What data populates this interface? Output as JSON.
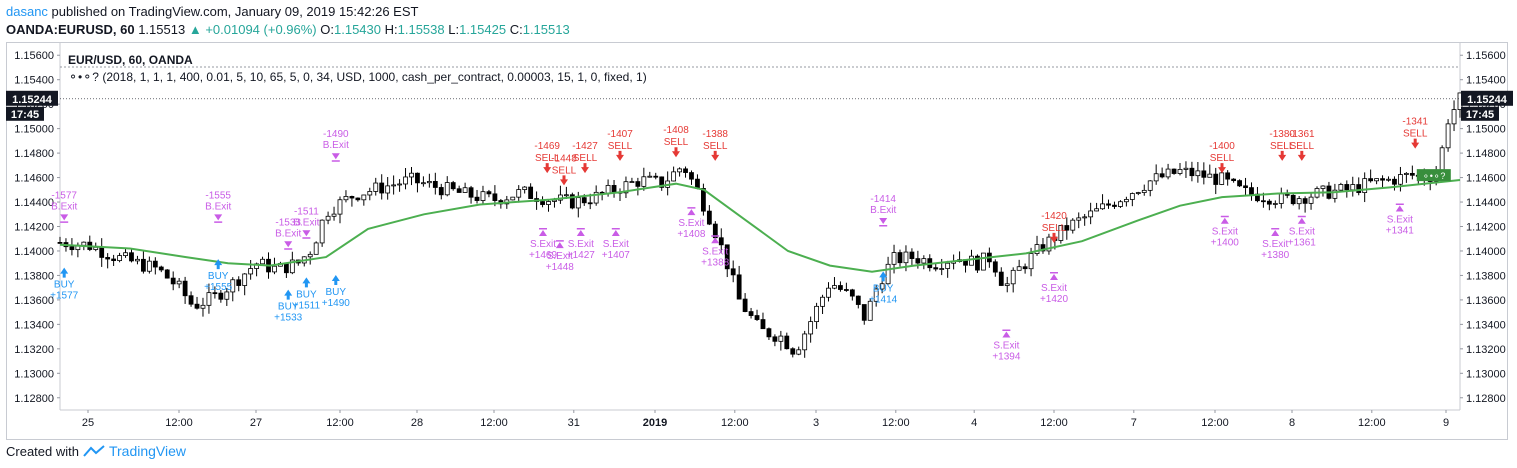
{
  "header": {
    "user": "dasanc",
    "published": "published on TradingView.com, January 09, 2019 15:42:26 EST",
    "symbol": "OANDA:EURUSD, 60",
    "last": "1.15513",
    "change": "+0.01094 (+0.96%)",
    "o_label": "O:",
    "o": "1.15430",
    "h_label": "H:",
    "h": "1.15538",
    "l_label": "L:",
    "l": "1.15425",
    "c_label": "C:",
    "c": "1.15513"
  },
  "legend": {
    "title": "EUR/USD, 60, OANDA",
    "strategy": "(2018, 1, 1, 1, 400, 0.01, 5, 10, 65, 5, 0, 34, USD, 1000, cash_per_contract, 0.00003, 15, 1, 0, fixed, 1)"
  },
  "price_tag": {
    "price": "1.15244",
    "time": "17:45"
  },
  "footer": {
    "created_with": "Created with",
    "brand": "TradingView"
  },
  "colors": {
    "sell": "#e53935",
    "buy": "#2196f3",
    "exit": "#c95ce6",
    "ema": "#4caf50",
    "up_candle": "#ffffff",
    "down_candle": "#000000"
  },
  "chart_data": {
    "type": "candlestick",
    "ylim": [
      1.127,
      1.157
    ],
    "y_ticks": [
      "1.15600",
      "1.15400",
      "1.15200",
      "1.15000",
      "1.14800",
      "1.14600",
      "1.14400",
      "1.14200",
      "1.14000",
      "1.13800",
      "1.13600",
      "1.13400",
      "1.13200",
      "1.13000",
      "1.12800"
    ],
    "x_ticks": [
      {
        "label": "25",
        "t": 0.02
      },
      {
        "label": "12:00",
        "t": 0.085
      },
      {
        "label": "27",
        "t": 0.14
      },
      {
        "label": "12:00",
        "t": 0.2
      },
      {
        "label": "28",
        "t": 0.255
      },
      {
        "label": "12:00",
        "t": 0.31
      },
      {
        "label": "31",
        "t": 0.367
      },
      {
        "label": "2019",
        "t": 0.425
      },
      {
        "label": "12:00",
        "t": 0.482
      },
      {
        "label": "3",
        "t": 0.54
      },
      {
        "label": "12:00",
        "t": 0.597
      },
      {
        "label": "4",
        "t": 0.653
      },
      {
        "label": "12:00",
        "t": 0.71
      },
      {
        "label": "7",
        "t": 0.767
      },
      {
        "label": "12:00",
        "t": 0.825
      },
      {
        "label": "8",
        "t": 0.88
      },
      {
        "label": "12:00",
        "t": 0.937
      },
      {
        "label": "9",
        "t": 0.99
      }
    ],
    "close_path": [
      [
        0.0,
        1.1407
      ],
      [
        0.02,
        1.1405
      ],
      [
        0.04,
        1.1395
      ],
      [
        0.055,
        1.139
      ],
      [
        0.07,
        1.1385
      ],
      [
        0.085,
        1.137
      ],
      [
        0.095,
        1.1355
      ],
      [
        0.11,
        1.1362
      ],
      [
        0.125,
        1.1375
      ],
      [
        0.14,
        1.139
      ],
      [
        0.155,
        1.1385
      ],
      [
        0.17,
        1.139
      ],
      [
        0.18,
        1.1402
      ],
      [
        0.19,
        1.1432
      ],
      [
        0.21,
        1.1446
      ],
      [
        0.23,
        1.1452
      ],
      [
        0.25,
        1.1458
      ],
      [
        0.27,
        1.1452
      ],
      [
        0.29,
        1.1446
      ],
      [
        0.31,
        1.1442
      ],
      [
        0.33,
        1.1448
      ],
      [
        0.35,
        1.1442
      ],
      [
        0.367,
        1.144
      ],
      [
        0.385,
        1.1445
      ],
      [
        0.4,
        1.1452
      ],
      [
        0.415,
        1.1458
      ],
      [
        0.43,
        1.1455
      ],
      [
        0.445,
        1.147
      ],
      [
        0.455,
        1.145
      ],
      [
        0.465,
        1.1425
      ],
      [
        0.475,
        1.1395
      ],
      [
        0.485,
        1.136
      ],
      [
        0.5,
        1.1335
      ],
      [
        0.515,
        1.133
      ],
      [
        0.525,
        1.1318
      ],
      [
        0.535,
        1.134
      ],
      [
        0.55,
        1.1375
      ],
      [
        0.565,
        1.1362
      ],
      [
        0.575,
        1.1345
      ],
      [
        0.585,
        1.1375
      ],
      [
        0.595,
        1.1393
      ],
      [
        0.61,
        1.1395
      ],
      [
        0.625,
        1.139
      ],
      [
        0.64,
        1.1395
      ],
      [
        0.655,
        1.139
      ],
      [
        0.665,
        1.1395
      ],
      [
        0.675,
        1.137
      ],
      [
        0.685,
        1.1385
      ],
      [
        0.7,
        1.1402
      ],
      [
        0.72,
        1.142
      ],
      [
        0.74,
        1.1432
      ],
      [
        0.76,
        1.1445
      ],
      [
        0.78,
        1.1458
      ],
      [
        0.8,
        1.1465
      ],
      [
        0.815,
        1.1462
      ],
      [
        0.83,
        1.1458
      ],
      [
        0.845,
        1.1448
      ],
      [
        0.86,
        1.1445
      ],
      [
        0.875,
        1.1442
      ],
      [
        0.89,
        1.1445
      ],
      [
        0.905,
        1.1448
      ],
      [
        0.92,
        1.145
      ],
      [
        0.935,
        1.1455
      ],
      [
        0.95,
        1.1458
      ],
      [
        0.965,
        1.1462
      ],
      [
        0.975,
        1.146
      ],
      [
        0.985,
        1.1465
      ],
      [
        0.99,
        1.1505
      ],
      [
        1.0,
        1.1524
      ]
    ],
    "ema_path": [
      [
        0.0,
        1.1405
      ],
      [
        0.05,
        1.1402
      ],
      [
        0.09,
        1.1395
      ],
      [
        0.12,
        1.139
      ],
      [
        0.15,
        1.1388
      ],
      [
        0.19,
        1.1395
      ],
      [
        0.22,
        1.1418
      ],
      [
        0.26,
        1.143
      ],
      [
        0.3,
        1.1438
      ],
      [
        0.35,
        1.1442
      ],
      [
        0.4,
        1.1448
      ],
      [
        0.44,
        1.1455
      ],
      [
        0.46,
        1.145
      ],
      [
        0.49,
        1.1425
      ],
      [
        0.52,
        1.14
      ],
      [
        0.55,
        1.1388
      ],
      [
        0.58,
        1.1383
      ],
      [
        0.61,
        1.1388
      ],
      [
        0.65,
        1.1393
      ],
      [
        0.69,
        1.1398
      ],
      [
        0.73,
        1.1408
      ],
      [
        0.77,
        1.1425
      ],
      [
        0.8,
        1.1437
      ],
      [
        0.83,
        1.1444
      ],
      [
        0.87,
        1.1447
      ],
      [
        0.91,
        1.1448
      ],
      [
        0.95,
        1.1452
      ],
      [
        1.0,
        1.1458
      ]
    ],
    "signals": [
      {
        "type": "sell",
        "t": 0.348,
        "p": 1.1462,
        "label": "-1469",
        "sub": "SELL"
      },
      {
        "type": "sell",
        "t": 0.36,
        "p": 1.1452,
        "label": "-1448",
        "sub": "SELL"
      },
      {
        "type": "sell",
        "t": 0.375,
        "p": 1.1462,
        "label": "-1427",
        "sub": "SELL"
      },
      {
        "type": "sell",
        "t": 0.4,
        "p": 1.1472,
        "label": "-1407",
        "sub": "SELL"
      },
      {
        "type": "sell",
        "t": 0.44,
        "p": 1.1475,
        "label": "-1408",
        "sub": "SELL"
      },
      {
        "type": "sell",
        "t": 0.468,
        "p": 1.1472,
        "label": "-1388",
        "sub": "SELL"
      },
      {
        "type": "sell",
        "t": 0.71,
        "p": 1.1405,
        "label": "-1420",
        "sub": "SELL"
      },
      {
        "type": "sell",
        "t": 0.83,
        "p": 1.1462,
        "label": "-1400",
        "sub": "SELL"
      },
      {
        "type": "sell",
        "t": 0.873,
        "p": 1.1472,
        "label": "-1380",
        "sub": "SELL"
      },
      {
        "type": "sell",
        "t": 0.887,
        "p": 1.1472,
        "label": "-1361",
        "sub": "SELL"
      },
      {
        "type": "sell",
        "t": 0.968,
        "p": 1.1482,
        "label": "-1341",
        "sub": "SELL"
      },
      {
        "type": "buy",
        "t": 0.003,
        "p": 1.1388,
        "label": "BUY",
        "sub": "+1577"
      },
      {
        "type": "buy",
        "t": 0.113,
        "p": 1.1395,
        "label": "BUY",
        "sub": "+1555"
      },
      {
        "type": "buy",
        "t": 0.163,
        "p": 1.137,
        "label": "BUY",
        "sub": "+1533"
      },
      {
        "type": "buy",
        "t": 0.176,
        "p": 1.138,
        "label": "BUY",
        "sub": "+1511"
      },
      {
        "type": "buy",
        "t": 0.197,
        "p": 1.1382,
        "label": "BUY",
        "sub": "+1490"
      },
      {
        "type": "buy",
        "t": 0.588,
        "p": 1.1385,
        "label": "BUY",
        "sub": "+1414"
      },
      {
        "type": "bexit",
        "t": 0.003,
        "p": 1.1425,
        "label": "-1577",
        "sub": "B.Exit"
      },
      {
        "type": "bexit",
        "t": 0.113,
        "p": 1.1425,
        "label": "-1555",
        "sub": "B.Exit"
      },
      {
        "type": "bexit",
        "t": 0.163,
        "p": 1.1403,
        "label": "-1533",
        "sub": "B.Exit"
      },
      {
        "type": "bexit",
        "t": 0.176,
        "p": 1.1412,
        "label": "-1511",
        "sub": "B.Exit"
      },
      {
        "type": "bexit",
        "t": 0.197,
        "p": 1.1475,
        "label": "-1490",
        "sub": "B.Exit"
      },
      {
        "type": "bexit",
        "t": 0.588,
        "p": 1.1422,
        "label": "-1414",
        "sub": "B.Exit"
      },
      {
        "type": "sexit",
        "t": 0.345,
        "p": 1.1418,
        "label": "S.Exit",
        "sub": "+1469"
      },
      {
        "type": "sexit",
        "t": 0.357,
        "p": 1.1408,
        "label": "S.Exit",
        "sub": "+1448"
      },
      {
        "type": "sexit",
        "t": 0.372,
        "p": 1.1418,
        "label": "S.Exit",
        "sub": "+1427"
      },
      {
        "type": "sexit",
        "t": 0.397,
        "p": 1.1418,
        "label": "S.Exit",
        "sub": "+1407"
      },
      {
        "type": "sexit",
        "t": 0.451,
        "p": 1.1435,
        "label": "S.Exit",
        "sub": "+1408"
      },
      {
        "type": "sexit",
        "t": 0.468,
        "p": 1.1412,
        "label": "S.Exit",
        "sub": "+1388"
      },
      {
        "type": "sexit",
        "t": 0.676,
        "p": 1.1335,
        "label": "S.Exit",
        "sub": "+1394"
      },
      {
        "type": "sexit",
        "t": 0.71,
        "p": 1.1382,
        "label": "S.Exit",
        "sub": "+1420"
      },
      {
        "type": "sexit",
        "t": 0.832,
        "p": 1.1428,
        "label": "S.Exit",
        "sub": "+1400"
      },
      {
        "type": "sexit",
        "t": 0.868,
        "p": 1.1418,
        "label": "S.Exit",
        "sub": "+1380"
      },
      {
        "type": "sexit",
        "t": 0.887,
        "p": 1.1428,
        "label": "S.Exit",
        "sub": "+1361"
      },
      {
        "type": "sexit",
        "t": 0.957,
        "p": 1.1438,
        "label": "S.Exit",
        "sub": "+1341"
      }
    ]
  }
}
